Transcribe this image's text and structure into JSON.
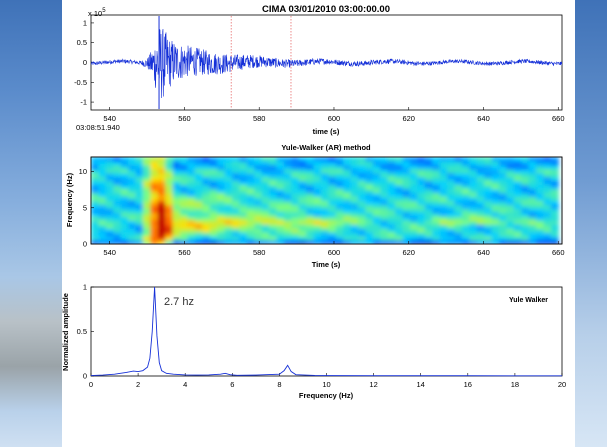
{
  "chart_data": [
    {
      "type": "line",
      "title": "CIMA 03/01/2010  03:00:00.00",
      "xlabel": "time (s)",
      "ylabel": "",
      "exponent_label": "x 10",
      "exponent_power": "5",
      "start_time_label": "03:08:51.940",
      "xlim": [
        535,
        661
      ],
      "ylim": [
        -1.2,
        1.2
      ],
      "xticks": [
        540,
        560,
        580,
        600,
        620,
        640,
        660
      ],
      "xtick_labels": [
        "540",
        "560",
        "580",
        "600",
        "620",
        "640",
        "660"
      ],
      "yticks": [
        1,
        0.5,
        0,
        -0.5,
        -1
      ],
      "ytick_labels": [
        "1",
        "0.5",
        "0",
        "-0.5",
        "-1"
      ],
      "trace_color": "#1530d8",
      "markers": [
        {
          "x": 553.2,
          "color": "#1530d8",
          "style": "solid"
        },
        {
          "x": 572.5,
          "color": "#e35a5a",
          "style": "dotted"
        },
        {
          "x": 588.5,
          "color": "#e35a5a",
          "style": "dotted"
        }
      ],
      "series": [
        {
          "envelope": {
            "x": [
              535,
              548,
              550,
              551.5,
              552.5,
              553.2,
              554,
              556,
              558,
              561,
              565,
              570,
              575,
              582,
              590,
              600,
              615,
              630,
              645,
              661
            ],
            "y": [
              0.05,
              0.05,
              0.12,
              0.4,
              0.75,
              1.0,
              0.95,
              0.65,
              0.5,
              0.4,
              0.33,
              0.26,
              0.2,
              0.14,
              0.09,
              0.07,
              0.06,
              0.05,
              0.05,
              0.05
            ]
          }
        }
      ]
    },
    {
      "type": "heatmap",
      "title": "Yule-Walker (AR) method",
      "xlabel": "Time (s)",
      "ylabel": "Frequency (Hz)",
      "xlim": [
        535,
        661
      ],
      "ylim": [
        0,
        12
      ],
      "data_xrange": [
        535,
        660
      ],
      "xticks": [
        540,
        560,
        580,
        600,
        620,
        640,
        660
      ],
      "xtick_labels": [
        "540",
        "560",
        "580",
        "600",
        "620",
        "640",
        "660"
      ],
      "yticks": [
        10,
        5,
        0
      ],
      "ytick_labels": [
        "10",
        "5",
        "0"
      ],
      "colormap": [
        "#00008f",
        "#0050ff",
        "#00d0ff",
        "#7fff7f",
        "#ffe000",
        "#ff6000",
        "#c00000"
      ]
    },
    {
      "type": "line",
      "title": "",
      "xlabel": "Frequency (Hz)",
      "ylabel": "Normalized amplitude",
      "xlim": [
        0,
        20
      ],
      "ylim": [
        0,
        1
      ],
      "xticks": [
        0,
        2,
        4,
        6,
        8,
        10,
        12,
        14,
        16,
        18,
        20
      ],
      "xtick_labels": [
        "0",
        "2",
        "4",
        "6",
        "8",
        "10",
        "12",
        "14",
        "16",
        "18",
        "20"
      ],
      "yticks": [
        1,
        0.5,
        0
      ],
      "ytick_labels": [
        "1",
        "0.5",
        "0"
      ],
      "legend": "Yule Walker",
      "legend_position": "top-right",
      "annotation": {
        "text": "2.7 hz",
        "x": 3.1,
        "y": 0.8
      },
      "line_color": "#1530d8",
      "series": [
        {
          "name": "Yule Walker",
          "x": [
            0,
            0.5,
            1.0,
            1.5,
            1.8,
            2.0,
            2.2,
            2.4,
            2.5,
            2.6,
            2.7,
            2.8,
            2.9,
            3.0,
            3.2,
            3.5,
            4.0,
            4.5,
            5.0,
            5.5,
            5.7,
            5.9,
            6.2,
            7.0,
            8.0,
            8.2,
            8.35,
            8.5,
            8.7,
            9.5,
            10,
            12,
            14,
            16,
            18,
            20
          ],
          "y": [
            0.005,
            0.01,
            0.02,
            0.04,
            0.055,
            0.05,
            0.06,
            0.1,
            0.2,
            0.5,
            1.0,
            0.45,
            0.15,
            0.06,
            0.03,
            0.02,
            0.012,
            0.01,
            0.012,
            0.02,
            0.03,
            0.015,
            0.008,
            0.01,
            0.02,
            0.06,
            0.12,
            0.05,
            0.015,
            0.006,
            0.005,
            0.004,
            0.003,
            0.003,
            0.002,
            0.002
          ]
        }
      ]
    }
  ]
}
